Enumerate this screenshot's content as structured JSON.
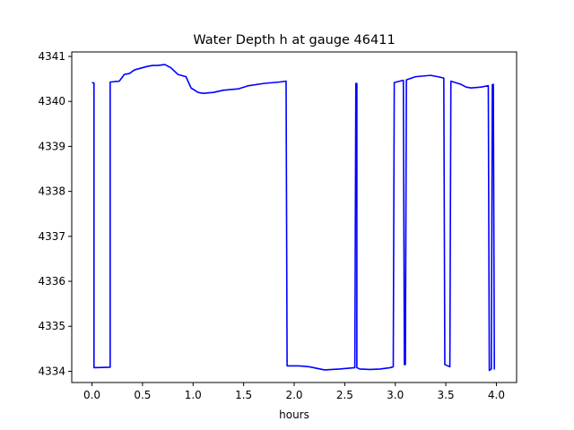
{
  "chart_data": {
    "type": "line",
    "title": "Water Depth h at gauge 46411",
    "xlabel": "hours",
    "ylabel": "",
    "xlim": [
      -0.2,
      4.2
    ],
    "ylim": [
      4333.75,
      4341.1
    ],
    "xticks": [
      0.0,
      0.5,
      1.0,
      1.5,
      2.0,
      2.5,
      3.0,
      3.5,
      4.0
    ],
    "xtick_labels": [
      "0.0",
      "0.5",
      "1.0",
      "1.5",
      "2.0",
      "2.5",
      "3.0",
      "3.5",
      "4.0"
    ],
    "yticks": [
      4334,
      4335,
      4336,
      4337,
      4338,
      4339,
      4340,
      4341
    ],
    "ytick_labels": [
      "4334",
      "4335",
      "4336",
      "4337",
      "4338",
      "4339",
      "4340",
      "4341"
    ],
    "grid": false,
    "series": [
      {
        "color": "#0000ff",
        "x": [
          0.0,
          0.02,
          0.02,
          0.18,
          0.18,
          0.27,
          0.32,
          0.37,
          0.42,
          0.5,
          0.55,
          0.6,
          0.65,
          0.72,
          0.78,
          0.85,
          0.93,
          0.98,
          1.05,
          1.1,
          1.2,
          1.3,
          1.45,
          1.55,
          1.7,
          1.85,
          1.92,
          1.93,
          2.05,
          2.15,
          2.3,
          2.45,
          2.55,
          2.6,
          2.61,
          2.62,
          2.62,
          2.65,
          2.75,
          2.85,
          2.95,
          2.98,
          2.99,
          3.08,
          3.09,
          3.1,
          3.11,
          3.2,
          3.35,
          3.42,
          3.48,
          3.49,
          3.54,
          3.55,
          3.65,
          3.7,
          3.75,
          3.85,
          3.92,
          3.93,
          3.95,
          3.96,
          3.97,
          3.98,
          3.985
        ],
        "y": [
          4340.42,
          4340.41,
          4334.08,
          4334.09,
          4340.43,
          4340.45,
          4340.6,
          4340.62,
          4340.7,
          4340.75,
          4340.78,
          4340.8,
          4340.8,
          4340.82,
          4340.75,
          4340.6,
          4340.55,
          4340.3,
          4340.2,
          4340.18,
          4340.2,
          4340.25,
          4340.28,
          4340.35,
          4340.4,
          4340.43,
          4340.45,
          4334.12,
          4334.12,
          4334.1,
          4334.03,
          4334.05,
          4334.07,
          4334.08,
          4340.4,
          4340.4,
          4334.08,
          4334.05,
          4334.04,
          4334.05,
          4334.08,
          4334.1,
          4340.42,
          4340.47,
          4334.15,
          4334.15,
          4340.48,
          4340.55,
          4340.58,
          4340.55,
          4340.52,
          4334.15,
          4334.1,
          4340.45,
          4340.38,
          4340.32,
          4340.3,
          4340.32,
          4340.35,
          4334.02,
          4334.05,
          4340.37,
          4340.38,
          4334.05,
          4334.05
        ]
      }
    ]
  }
}
